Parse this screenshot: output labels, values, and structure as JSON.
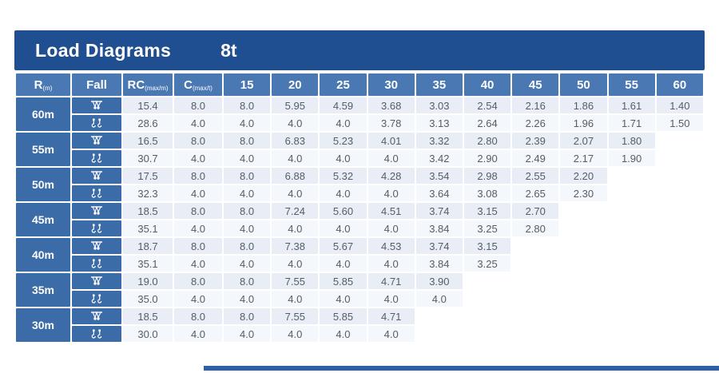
{
  "title": {
    "text": "Load Diagrams",
    "capacity": "8t"
  },
  "colors": {
    "title_band": "#1f4f90",
    "header_cell": "#4a78b2",
    "left_cell": "#3c6ca7",
    "row_a_bg": "#e9eef6",
    "row_b_bg": "#f4f7fb",
    "value_text": "#575d65",
    "bottom_bar": "#2e5fa5"
  },
  "table": {
    "headers": {
      "radius_label": "R",
      "radius_sub": "(m)",
      "fall_label": "Fall",
      "rc_label": "RC",
      "rc_sub": "(max/m)",
      "c_label": "C",
      "c_sub": "(max/t)",
      "jib_lengths": [
        "15",
        "20",
        "25",
        "30",
        "35",
        "40",
        "45",
        "50",
        "55",
        "60"
      ]
    },
    "row_groups": [
      {
        "radius": "60m",
        "rows": [
          {
            "fall": "four",
            "rc": "15.4",
            "c": "8.0",
            "values": [
              "8.0",
              "5.95",
              "4.59",
              "3.68",
              "3.03",
              "2.54",
              "2.16",
              "1.86",
              "1.61",
              "1.40"
            ]
          },
          {
            "fall": "two",
            "rc": "28.6",
            "c": "4.0",
            "values": [
              "4.0",
              "4.0",
              "4.0",
              "3.78",
              "3.13",
              "2.64",
              "2.26",
              "1.96",
              "1.71",
              "1.50"
            ]
          }
        ]
      },
      {
        "radius": "55m",
        "rows": [
          {
            "fall": "four",
            "rc": "16.5",
            "c": "8.0",
            "values": [
              "8.0",
              "6.83",
              "5.23",
              "4.01",
              "3.32",
              "2.80",
              "2.39",
              "2.07",
              "1.80",
              ""
            ]
          },
          {
            "fall": "two",
            "rc": "30.7",
            "c": "4.0",
            "values": [
              "4.0",
              "4.0",
              "4.0",
              "4.0",
              "3.42",
              "2.90",
              "2.49",
              "2.17",
              "1.90",
              ""
            ]
          }
        ]
      },
      {
        "radius": "50m",
        "rows": [
          {
            "fall": "four",
            "rc": "17.5",
            "c": "8.0",
            "values": [
              "8.0",
              "6.88",
              "5.32",
              "4.28",
              "3.54",
              "2.98",
              "2.55",
              "2.20",
              "",
              ""
            ]
          },
          {
            "fall": "two",
            "rc": "32.3",
            "c": "4.0",
            "values": [
              "4.0",
              "4.0",
              "4.0",
              "4.0",
              "3.64",
              "3.08",
              "2.65",
              "2.30",
              "",
              ""
            ]
          }
        ]
      },
      {
        "radius": "45m",
        "rows": [
          {
            "fall": "four",
            "rc": "18.5",
            "c": "8.0",
            "values": [
              "8.0",
              "7.24",
              "5.60",
              "4.51",
              "3.74",
              "3.15",
              "2.70",
              "",
              "",
              ""
            ]
          },
          {
            "fall": "two",
            "rc": "35.1",
            "c": "4.0",
            "values": [
              "4.0",
              "4.0",
              "4.0",
              "4.0",
              "3.84",
              "3.25",
              "2.80",
              "",
              "",
              ""
            ]
          }
        ]
      },
      {
        "radius": "40m",
        "rows": [
          {
            "fall": "four",
            "rc": "18.7",
            "c": "8.0",
            "values": [
              "8.0",
              "7.38",
              "5.67",
              "4.53",
              "3.74",
              "3.15",
              "",
              "",
              "",
              ""
            ]
          },
          {
            "fall": "two",
            "rc": "35.1",
            "c": "4.0",
            "values": [
              "4.0",
              "4.0",
              "4.0",
              "4.0",
              "3.84",
              "3.25",
              "",
              "",
              "",
              ""
            ]
          }
        ]
      },
      {
        "radius": "35m",
        "rows": [
          {
            "fall": "four",
            "rc": "19.0",
            "c": "8.0",
            "values": [
              "8.0",
              "7.55",
              "5.85",
              "4.71",
              "3.90",
              "",
              "",
              "",
              "",
              ""
            ]
          },
          {
            "fall": "two",
            "rc": "35.0",
            "c": "4.0",
            "values": [
              "4.0",
              "4.0",
              "4.0",
              "4.0",
              "4.0",
              "",
              "",
              "",
              "",
              ""
            ]
          }
        ]
      },
      {
        "radius": "30m",
        "rows": [
          {
            "fall": "four",
            "rc": "18.5",
            "c": "8.0",
            "values": [
              "8.0",
              "7.55",
              "5.85",
              "4.71",
              "",
              "",
              "",
              "",
              "",
              ""
            ]
          },
          {
            "fall": "two",
            "rc": "30.0",
            "c": "4.0",
            "values": [
              "4.0",
              "4.0",
              "4.0",
              "4.0",
              "",
              "",
              "",
              "",
              "",
              ""
            ]
          }
        ]
      }
    ]
  }
}
